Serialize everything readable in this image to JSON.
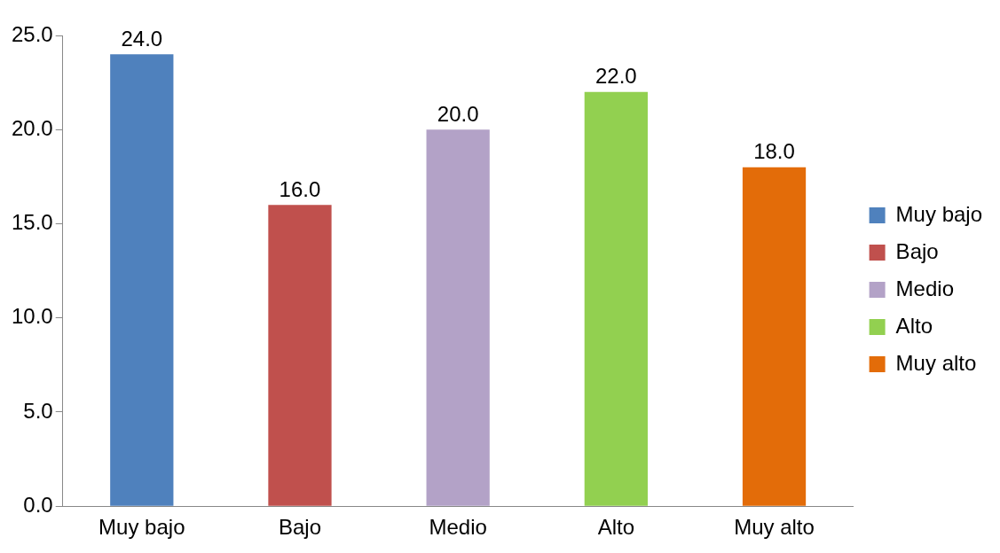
{
  "chart_data": {
    "type": "bar",
    "categories": [
      "Muy bajo",
      "Bajo",
      "Medio",
      "Alto",
      "Muy alto"
    ],
    "series": [
      {
        "name": "Muy bajo",
        "color": "#4f81bd",
        "values": [
          24,
          null,
          null,
          null,
          null
        ],
        "value_labels": [
          "24.0",
          null,
          null,
          null,
          null
        ]
      },
      {
        "name": "Bajo",
        "color": "#c0504d",
        "values": [
          null,
          16,
          null,
          null,
          null
        ],
        "value_labels": [
          null,
          "16.0",
          null,
          null,
          null
        ]
      },
      {
        "name": "Medio",
        "color": "#b3a2c7",
        "values": [
          null,
          null,
          20,
          null,
          null
        ],
        "value_labels": [
          null,
          null,
          "20.0",
          null,
          null
        ]
      },
      {
        "name": "Alto",
        "color": "#92d050",
        "values": [
          null,
          null,
          null,
          22,
          null
        ],
        "value_labels": [
          null,
          null,
          null,
          "22.0",
          null
        ]
      },
      {
        "name": "Muy alto",
        "color": "#e36c09",
        "values": [
          null,
          null,
          null,
          null,
          18
        ],
        "value_labels": [
          null,
          null,
          null,
          null,
          "18.0"
        ]
      }
    ],
    "ylim": [
      0,
      25
    ],
    "yticks": [
      {
        "value": 0,
        "label": "0.0"
      },
      {
        "value": 5,
        "label": "5.0"
      },
      {
        "value": 10,
        "label": "10.0"
      },
      {
        "value": 15,
        "label": "15.0"
      },
      {
        "value": 20,
        "label": "20.0"
      },
      {
        "value": 25,
        "label": "25.0"
      }
    ],
    "grid": false,
    "legend": "right"
  }
}
